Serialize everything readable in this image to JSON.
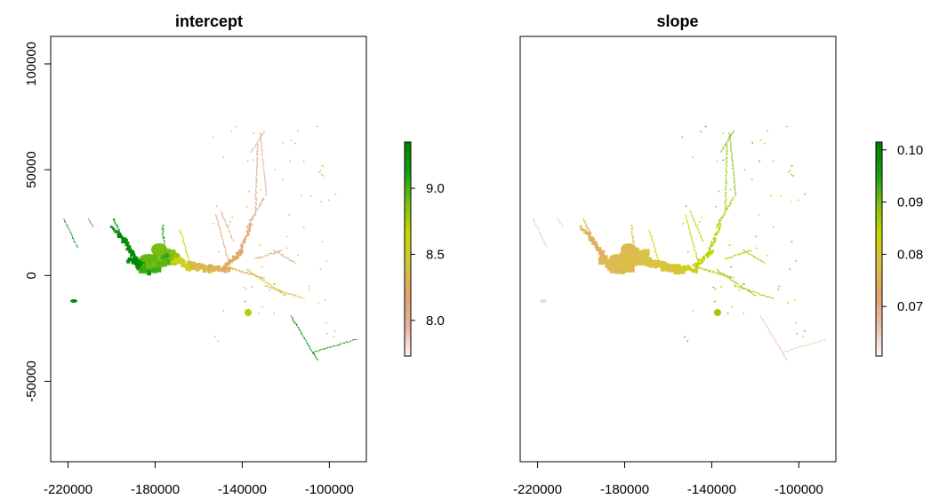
{
  "chart_data": [
    {
      "type": "heatmap",
      "title": "intercept",
      "xlim": [
        -228000,
        -83000
      ],
      "ylim": [
        -88000,
        113000
      ],
      "x_ticks": [
        -220000,
        -180000,
        -140000,
        -100000
      ],
      "x_tick_labels": [
        "-220000",
        "-180000",
        "-140000",
        "-100000"
      ],
      "y_ticks": [
        -50000,
        0,
        50000,
        100000
      ],
      "y_tick_labels": [
        "-50000",
        "0",
        "50000",
        "100000"
      ],
      "legend": {
        "position": "right",
        "min": 7.73,
        "max": 9.35,
        "ticks": [
          8.0,
          8.5,
          9.0
        ],
        "tick_labels": [
          "8.0",
          "8.5",
          "9.0"
        ],
        "colors": [
          "#fdf3f3",
          "#e8b0a0",
          "#e3a36a",
          "#d3c63a",
          "#c8d800",
          "#7bbf14",
          "#12a012",
          "#008000"
        ]
      }
    },
    {
      "type": "heatmap",
      "title": "slope",
      "xlim": [
        -228000,
        -83000
      ],
      "ylim": [
        -88000,
        113000
      ],
      "x_ticks": [
        -220000,
        -180000,
        -140000,
        -100000
      ],
      "x_tick_labels": [
        "-220000",
        "-180000",
        "-140000",
        "-100000"
      ],
      "legend": {
        "position": "right",
        "min": 0.0605,
        "max": 0.1015,
        "ticks": [
          0.07,
          0.08,
          0.09,
          0.1
        ],
        "tick_labels": [
          "0.07",
          "0.08",
          "0.09",
          "0.10"
        ],
        "colors": [
          "#fdf3f3",
          "#ebc0b0",
          "#e3a36a",
          "#dcc048",
          "#c8d800",
          "#7bbf14",
          "#12a012",
          "#008000"
        ]
      }
    }
  ]
}
